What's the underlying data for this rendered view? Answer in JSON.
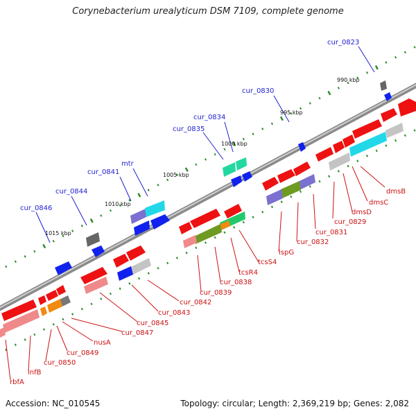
{
  "title": "Corynebacterium urealyticum DSM 7109, complete genome",
  "footer": {
    "accession": "Accession: NC_010545",
    "summary": "Topology: circular; Length: 2,369,219 bp; Genes: 2,082"
  },
  "colors": {
    "red": "#ee1111",
    "pink": "#f08a8a",
    "blue": "#1122ee",
    "purple": "#7b6fd0",
    "cyan": "#22d8e8",
    "green": "#22c96a",
    "olive": "#6e9a22",
    "orange": "#f08a10",
    "gray": "#777777",
    "lightgray": "#c4c4c4",
    "label_blue": "#1f1fcf",
    "label_red": "#cc1111"
  },
  "scale_labels": [
    "990 kbp",
    "995 kbp",
    "1000 kbp",
    "1005 kbp",
    "1010 kbp",
    "1015 kbp"
  ],
  "gene_labels_top": [
    "cur_0823",
    "cur_0830",
    "cur_0834",
    "cur_0835",
    "cur_0841",
    "mtr",
    "cur_0844",
    "cur_0846"
  ],
  "gene_labels_bottom": [
    "dmsB",
    "dmsC",
    "dmsD",
    "cur_0829",
    "cur_0831",
    "cur_0832",
    "ispG",
    "tcsS4",
    "tcsR4",
    "cur_0838",
    "cur_0839",
    "cur_0842",
    "cur_0843",
    "cur_0845",
    "cur_0847",
    "nusA",
    "cur_0849",
    "cur_0850",
    "infB",
    "rbfA"
  ]
}
